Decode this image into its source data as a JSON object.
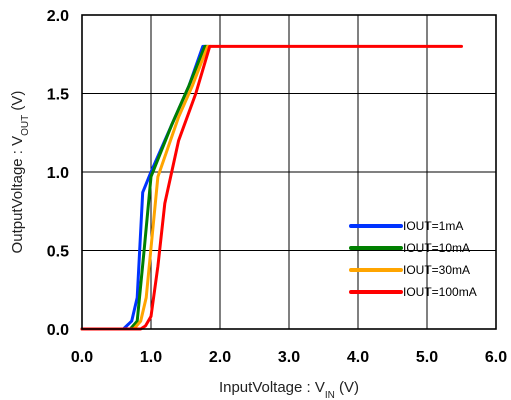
{
  "chart_data": {
    "type": "line",
    "title": "",
    "xlabel": {
      "main": "InputVoltage : V",
      "subscript": "IN",
      "unit": " (V)"
    },
    "ylabel": {
      "main": "OutputVoltage : V",
      "subscript": "OUT",
      "unit": " (V)"
    },
    "xlim": [
      0,
      6
    ],
    "ylim": [
      0,
      2
    ],
    "x_ticks": [
      0,
      1,
      2,
      3,
      4,
      5,
      6
    ],
    "y_ticks": [
      0,
      0.5,
      1,
      1.5,
      2
    ],
    "x_tick_labels": [
      "0.0",
      "1.0",
      "2.0",
      "3.0",
      "4.0",
      "5.0",
      "6.0"
    ],
    "y_tick_labels": [
      "0.0",
      "0.5",
      "1.0",
      "1.5",
      "2.0"
    ],
    "grid": true,
    "legend": {
      "placement": "bottom-right",
      "entries": [
        "IOUT=1mA",
        "IOUT=10mA",
        "IOUT=30mA",
        "IOUT=100mA"
      ]
    },
    "series": [
      {
        "name": "IOUT=1mA",
        "color": "#0033ff",
        "points": [
          [
            0,
            0
          ],
          [
            0.6,
            0
          ],
          [
            0.72,
            0.05
          ],
          [
            0.8,
            0.2
          ],
          [
            0.88,
            0.87
          ],
          [
            1.0,
            1.0
          ],
          [
            1.3,
            1.3
          ],
          [
            1.55,
            1.55
          ],
          [
            1.75,
            1.8
          ],
          [
            1.8,
            1.8
          ]
        ]
      },
      {
        "name": "IOUT=10mA",
        "color": "#008000",
        "points": [
          [
            0,
            0
          ],
          [
            0.7,
            0
          ],
          [
            0.8,
            0.05
          ],
          [
            0.9,
            0.5
          ],
          [
            1.0,
            0.97
          ],
          [
            1.3,
            1.3
          ],
          [
            1.55,
            1.55
          ],
          [
            1.78,
            1.8
          ],
          [
            1.83,
            1.8
          ]
        ]
      },
      {
        "name": "IOUT=30mA",
        "color": "#ffa500",
        "points": [
          [
            0,
            0
          ],
          [
            0.75,
            0
          ],
          [
            0.85,
            0.05
          ],
          [
            0.93,
            0.2
          ],
          [
            1.1,
            0.97
          ],
          [
            1.4,
            1.35
          ],
          [
            1.6,
            1.55
          ],
          [
            1.82,
            1.8
          ],
          [
            1.86,
            1.8
          ]
        ]
      },
      {
        "name": "IOUT=100mA",
        "color": "#ff0000",
        "points": [
          [
            0,
            0
          ],
          [
            0.85,
            0
          ],
          [
            0.92,
            0.02
          ],
          [
            1.0,
            0.08
          ],
          [
            1.1,
            0.4
          ],
          [
            1.2,
            0.8
          ],
          [
            1.4,
            1.2
          ],
          [
            1.65,
            1.5
          ],
          [
            1.85,
            1.8
          ],
          [
            5.5,
            1.8
          ]
        ]
      }
    ]
  }
}
